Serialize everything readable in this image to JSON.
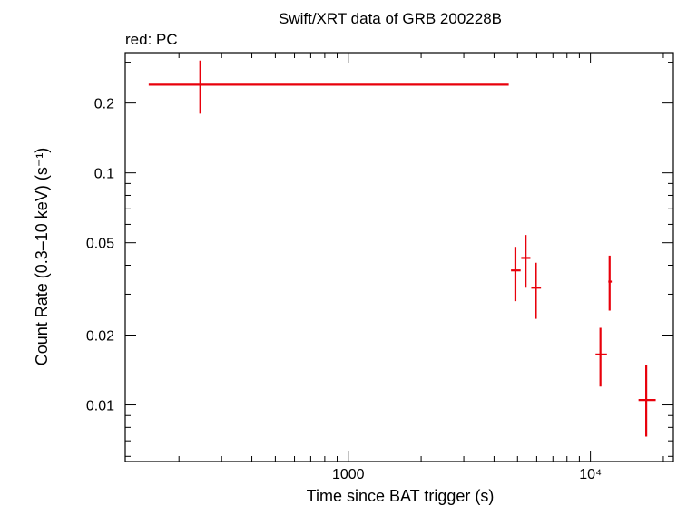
{
  "chart_data": {
    "type": "scatter",
    "title": "Swift/XRT data of GRB 200228B",
    "subtitle": "red: PC",
    "xlabel": "Time since BAT trigger (s)",
    "ylabel": "Count Rate (0.3–10 keV) (s⁻¹)",
    "x_scale": "log",
    "y_scale": "log",
    "xlim": [
      120,
      22000
    ],
    "ylim": [
      0.0057,
      0.33
    ],
    "x_ticks": [
      {
        "value": 1000,
        "label": "1000"
      },
      {
        "value": 10000,
        "label": "10⁴"
      }
    ],
    "y_ticks": [
      {
        "value": 0.01,
        "label": "0.01"
      },
      {
        "value": 0.02,
        "label": "0.02"
      },
      {
        "value": 0.05,
        "label": "0.05"
      },
      {
        "value": 0.1,
        "label": "0.1"
      },
      {
        "value": 0.2,
        "label": "0.2"
      }
    ],
    "series": [
      {
        "name": "PC",
        "color": "#e8000b",
        "points": [
          {
            "x": 245,
            "xlo": 150,
            "xhi": 4600,
            "y": 0.24,
            "ylo": 0.18,
            "yhi": 0.305
          },
          {
            "x": 4900,
            "xlo": 4700,
            "xhi": 5150,
            "y": 0.038,
            "ylo": 0.028,
            "yhi": 0.048
          },
          {
            "x": 5400,
            "xlo": 5180,
            "xhi": 5650,
            "y": 0.043,
            "ylo": 0.032,
            "yhi": 0.054
          },
          {
            "x": 5950,
            "xlo": 5700,
            "xhi": 6250,
            "y": 0.032,
            "ylo": 0.0235,
            "yhi": 0.041
          },
          {
            "x": 11000,
            "xlo": 10500,
            "xhi": 11700,
            "y": 0.0165,
            "ylo": 0.012,
            "yhi": 0.0215
          },
          {
            "x": 12000,
            "xlo": 11850,
            "xhi": 12250,
            "y": 0.034,
            "ylo": 0.0255,
            "yhi": 0.044
          },
          {
            "x": 17000,
            "xlo": 15800,
            "xhi": 18600,
            "y": 0.0105,
            "ylo": 0.0073,
            "yhi": 0.0148
          }
        ]
      }
    ],
    "grid": false,
    "legend": "none"
  }
}
